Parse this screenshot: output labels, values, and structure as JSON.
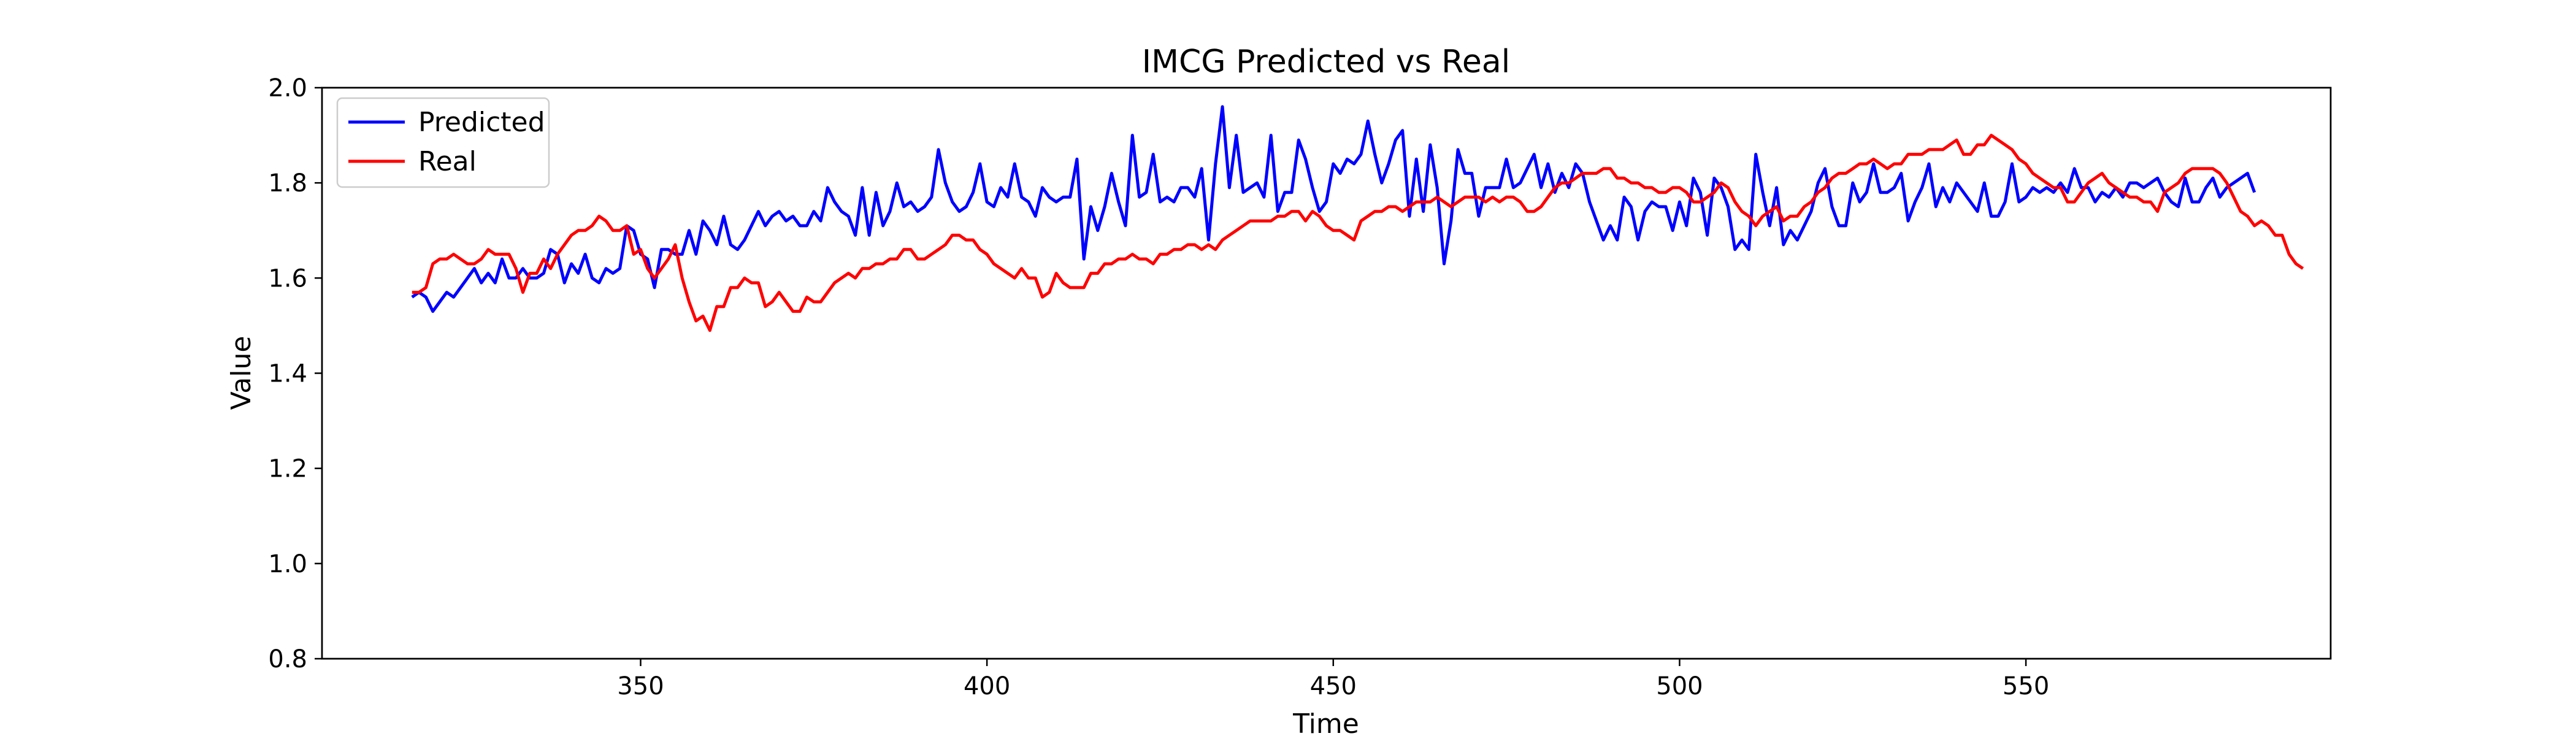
{
  "chart_data": {
    "type": "line",
    "title": "IMCG Predicted vs Real",
    "xlabel": "Time",
    "ylabel": "Value",
    "xlim": [
      304,
      594
    ],
    "ylim": [
      0.8,
      2.0
    ],
    "x_ticks": [
      350,
      400,
      450,
      500,
      550
    ],
    "x_tick_labels": [
      "350",
      "400",
      "450",
      "500",
      "550"
    ],
    "y_ticks": [
      0.8,
      1.0,
      1.2,
      1.4,
      1.6,
      1.8,
      2.0
    ],
    "y_tick_labels": [
      "0.8",
      "1.0",
      "1.2",
      "1.4",
      "1.6",
      "1.8",
      "2.0"
    ],
    "grid": false,
    "legend_position": "upper left",
    "series": [
      {
        "name": "Predicted",
        "color": "#0000ff",
        "x_start": 317,
        "x_step": 1,
        "values": [
          1.56,
          1.57,
          1.56,
          1.53,
          1.55,
          1.57,
          1.56,
          1.58,
          1.6,
          1.62,
          1.59,
          1.61,
          1.59,
          1.64,
          1.6,
          1.6,
          1.62,
          1.6,
          1.6,
          1.61,
          1.66,
          1.65,
          1.59,
          1.63,
          1.61,
          1.65,
          1.6,
          1.59,
          1.62,
          1.61,
          1.62,
          1.71,
          1.7,
          1.65,
          1.64,
          1.58,
          1.66,
          1.66,
          1.65,
          1.65,
          1.7,
          1.65,
          1.72,
          1.7,
          1.67,
          1.73,
          1.67,
          1.66,
          1.68,
          1.71,
          1.74,
          1.71,
          1.73,
          1.74,
          1.72,
          1.73,
          1.71,
          1.71,
          1.74,
          1.72,
          1.79,
          1.76,
          1.74,
          1.73,
          1.69,
          1.79,
          1.69,
          1.78,
          1.71,
          1.74,
          1.8,
          1.75,
          1.76,
          1.74,
          1.75,
          1.77,
          1.87,
          1.8,
          1.76,
          1.74,
          1.75,
          1.78,
          1.84,
          1.76,
          1.75,
          1.79,
          1.77,
          1.84,
          1.77,
          1.76,
          1.73,
          1.79,
          1.77,
          1.76,
          1.77,
          1.77,
          1.85,
          1.64,
          1.75,
          1.7,
          1.75,
          1.82,
          1.76,
          1.71,
          1.9,
          1.77,
          1.78,
          1.86,
          1.76,
          1.77,
          1.76,
          1.79,
          1.79,
          1.77,
          1.83,
          1.68,
          1.84,
          1.96,
          1.79,
          1.9,
          1.78,
          1.79,
          1.8,
          1.77,
          1.9,
          1.74,
          1.78,
          1.78,
          1.89,
          1.85,
          1.79,
          1.74,
          1.76,
          1.84,
          1.82,
          1.85,
          1.84,
          1.86,
          1.93,
          1.86,
          1.8,
          1.84,
          1.89,
          1.91,
          1.73,
          1.85,
          1.74,
          1.88,
          1.79,
          1.63,
          1.72,
          1.87,
          1.82,
          1.82,
          1.73,
          1.79,
          1.79,
          1.79,
          1.85,
          1.79,
          1.8,
          1.83,
          1.86,
          1.79,
          1.84,
          1.78,
          1.82,
          1.79,
          1.84,
          1.82,
          1.76,
          1.72,
          1.68,
          1.71,
          1.68,
          1.77,
          1.75,
          1.68,
          1.74,
          1.76,
          1.75,
          1.75,
          1.7,
          1.76,
          1.71,
          1.81,
          1.78,
          1.69,
          1.81,
          1.79,
          1.75,
          1.66,
          1.68,
          1.66,
          1.86,
          1.78,
          1.71,
          1.79,
          1.67,
          1.7,
          1.68,
          1.71,
          1.74,
          1.8,
          1.83,
          1.75,
          1.71,
          1.71,
          1.8,
          1.76,
          1.78,
          1.84,
          1.78,
          1.78,
          1.79,
          1.82,
          1.72,
          1.76,
          1.79,
          1.84,
          1.75,
          1.79,
          1.76,
          1.8,
          1.78,
          1.76,
          1.74,
          1.8,
          1.73,
          1.73,
          1.76,
          1.84,
          1.76,
          1.77,
          1.79,
          1.78,
          1.79,
          1.78,
          1.8,
          1.78,
          1.83,
          1.79,
          1.79,
          1.76,
          1.78,
          1.77,
          1.79,
          1.77,
          1.8,
          1.8,
          1.79,
          1.8,
          1.81,
          1.78,
          1.76,
          1.75,
          1.81,
          1.76,
          1.76,
          1.79,
          1.81,
          1.77,
          1.79,
          1.8,
          1.81,
          1.82,
          1.78
        ]
      },
      {
        "name": "Real",
        "color": "#ff0000",
        "x_start": 317,
        "x_step": 1,
        "values": [
          1.57,
          1.57,
          1.58,
          1.63,
          1.64,
          1.64,
          1.65,
          1.64,
          1.63,
          1.63,
          1.64,
          1.66,
          1.65,
          1.65,
          1.65,
          1.62,
          1.57,
          1.61,
          1.61,
          1.64,
          1.62,
          1.65,
          1.67,
          1.69,
          1.7,
          1.7,
          1.71,
          1.73,
          1.72,
          1.7,
          1.7,
          1.71,
          1.65,
          1.66,
          1.62,
          1.6,
          1.62,
          1.64,
          1.67,
          1.6,
          1.55,
          1.51,
          1.52,
          1.49,
          1.54,
          1.54,
          1.58,
          1.58,
          1.6,
          1.59,
          1.59,
          1.54,
          1.55,
          1.57,
          1.55,
          1.53,
          1.53,
          1.56,
          1.55,
          1.55,
          1.57,
          1.59,
          1.6,
          1.61,
          1.6,
          1.62,
          1.62,
          1.63,
          1.63,
          1.64,
          1.64,
          1.66,
          1.66,
          1.64,
          1.64,
          1.65,
          1.66,
          1.67,
          1.69,
          1.69,
          1.68,
          1.68,
          1.66,
          1.65,
          1.63,
          1.62,
          1.61,
          1.6,
          1.62,
          1.6,
          1.6,
          1.56,
          1.57,
          1.61,
          1.59,
          1.58,
          1.58,
          1.58,
          1.61,
          1.61,
          1.63,
          1.63,
          1.64,
          1.64,
          1.65,
          1.64,
          1.64,
          1.63,
          1.65,
          1.65,
          1.66,
          1.66,
          1.67,
          1.67,
          1.66,
          1.67,
          1.66,
          1.68,
          1.69,
          1.7,
          1.71,
          1.72,
          1.72,
          1.72,
          1.72,
          1.73,
          1.73,
          1.74,
          1.74,
          1.72,
          1.74,
          1.73,
          1.71,
          1.7,
          1.7,
          1.69,
          1.68,
          1.72,
          1.73,
          1.74,
          1.74,
          1.75,
          1.75,
          1.74,
          1.75,
          1.76,
          1.76,
          1.76,
          1.77,
          1.76,
          1.75,
          1.76,
          1.77,
          1.77,
          1.77,
          1.76,
          1.77,
          1.76,
          1.77,
          1.77,
          1.76,
          1.74,
          1.74,
          1.75,
          1.77,
          1.79,
          1.8,
          1.8,
          1.81,
          1.82,
          1.82,
          1.82,
          1.83,
          1.83,
          1.81,
          1.81,
          1.8,
          1.8,
          1.79,
          1.79,
          1.78,
          1.78,
          1.79,
          1.79,
          1.78,
          1.76,
          1.76,
          1.77,
          1.78,
          1.8,
          1.79,
          1.76,
          1.74,
          1.73,
          1.71,
          1.73,
          1.74,
          1.75,
          1.72,
          1.73,
          1.73,
          1.75,
          1.76,
          1.78,
          1.79,
          1.81,
          1.82,
          1.82,
          1.83,
          1.84,
          1.84,
          1.85,
          1.84,
          1.83,
          1.84,
          1.84,
          1.86,
          1.86,
          1.86,
          1.87,
          1.87,
          1.87,
          1.88,
          1.89,
          1.86,
          1.86,
          1.88,
          1.88,
          1.9,
          1.89,
          1.88,
          1.87,
          1.85,
          1.84,
          1.82,
          1.81,
          1.8,
          1.79,
          1.79,
          1.76,
          1.76,
          1.78,
          1.8,
          1.81,
          1.82,
          1.8,
          1.79,
          1.78,
          1.77,
          1.77,
          1.76,
          1.76,
          1.74,
          1.78,
          1.79,
          1.8,
          1.82,
          1.83,
          1.83,
          1.83,
          1.83,
          1.82,
          1.8,
          1.77,
          1.74,
          1.73,
          1.71,
          1.72,
          1.71,
          1.69,
          1.69,
          1.65,
          1.63,
          1.62
        ]
      }
    ]
  }
}
